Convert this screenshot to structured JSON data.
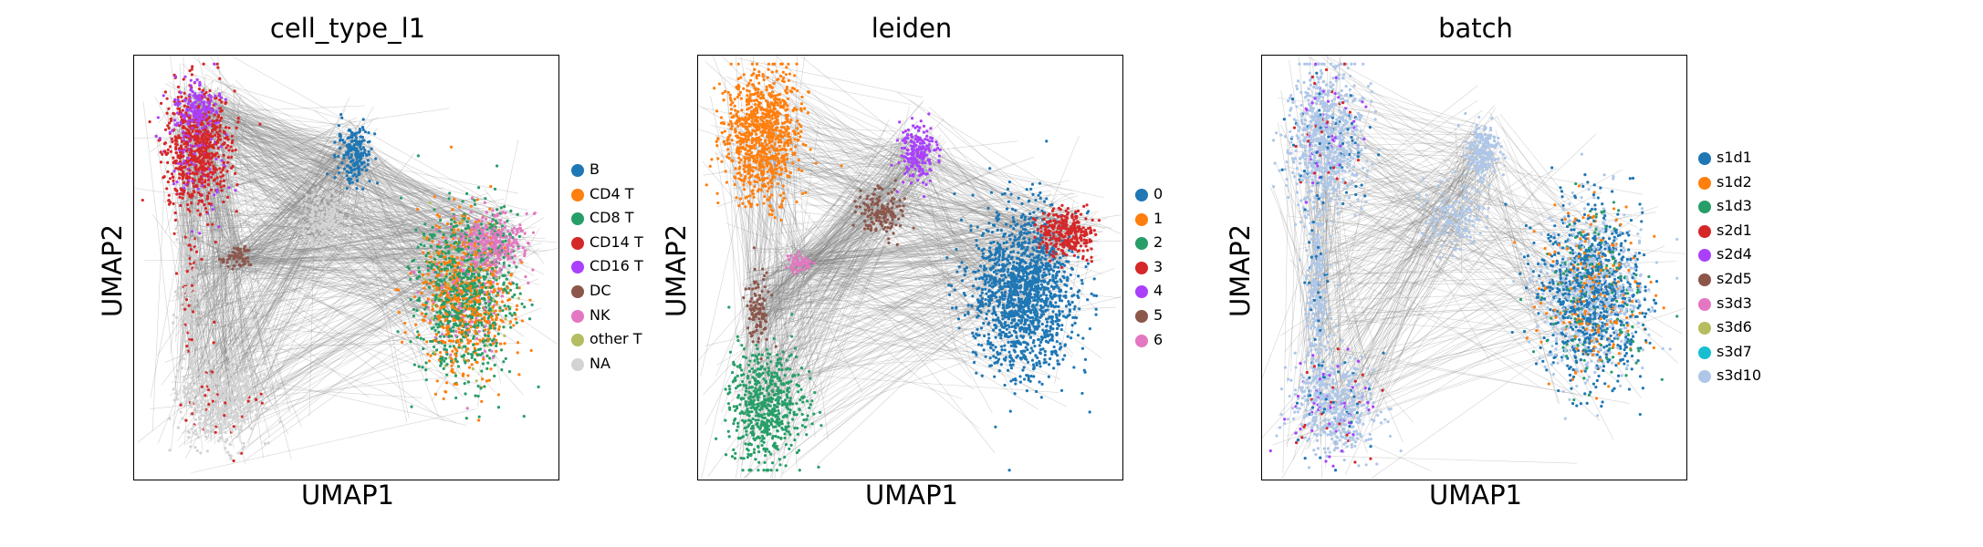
{
  "chart_data": [
    {
      "type": "scatter",
      "title": "cell_type_l1",
      "xlabel": "UMAP1",
      "ylabel": "UMAP2",
      "legend_position": "right",
      "edges_color": "#808080",
      "categories": [
        {
          "name": "B",
          "color": "#1f77b4"
        },
        {
          "name": "CD4 T",
          "color": "#ff7f0e"
        },
        {
          "name": "CD8 T",
          "color": "#279e68"
        },
        {
          "name": "CD14 T",
          "color": "#d62728"
        },
        {
          "name": "CD16 T",
          "color": "#aa40fc"
        },
        {
          "name": "DC",
          "color": "#8c564b"
        },
        {
          "name": "NK",
          "color": "#e377c2"
        },
        {
          "name": "other T",
          "color": "#b5bd61"
        },
        {
          "name": "NA",
          "color": "#d3d3d3"
        }
      ],
      "clusters": [
        {
          "x": 0.15,
          "y": 0.78,
          "rx": 0.07,
          "ry": 0.13,
          "mix": [
            [
              "#d62728",
              0.85
            ],
            [
              "#aa40fc",
              0.15
            ]
          ],
          "n": 800
        },
        {
          "x": 0.15,
          "y": 0.88,
          "rx": 0.04,
          "ry": 0.04,
          "mix": [
            [
              "#aa40fc",
              0.95
            ],
            [
              "#d62728",
              0.05
            ]
          ],
          "n": 150
        },
        {
          "x": 0.13,
          "y": 0.45,
          "rx": 0.025,
          "ry": 0.16,
          "mix": [
            [
              "#d3d3d3",
              0.85
            ],
            [
              "#d62728",
              0.15
            ]
          ],
          "n": 250
        },
        {
          "x": 0.2,
          "y": 0.18,
          "rx": 0.09,
          "ry": 0.1,
          "mix": [
            [
              "#d3d3d3",
              0.92
            ],
            [
              "#d62728",
              0.08
            ]
          ],
          "n": 450
        },
        {
          "x": 0.24,
          "y": 0.52,
          "rx": 0.03,
          "ry": 0.025,
          "mix": [
            [
              "#8c564b",
              1.0
            ]
          ],
          "n": 60
        },
        {
          "x": 0.52,
          "y": 0.77,
          "rx": 0.035,
          "ry": 0.06,
          "mix": [
            [
              "#1f77b4",
              1.0
            ]
          ],
          "n": 200
        },
        {
          "x": 0.45,
          "y": 0.62,
          "rx": 0.06,
          "ry": 0.07,
          "mix": [
            [
              "#d3d3d3",
              1.0
            ]
          ],
          "n": 180
        },
        {
          "x": 0.78,
          "y": 0.43,
          "rx": 0.1,
          "ry": 0.17,
          "mix": [
            [
              "#279e68",
              0.48
            ],
            [
              "#ff7f0e",
              0.4
            ],
            [
              "#e377c2",
              0.08
            ],
            [
              "#b5bd61",
              0.04
            ]
          ],
          "n": 1500
        },
        {
          "x": 0.85,
          "y": 0.56,
          "rx": 0.07,
          "ry": 0.06,
          "mix": [
            [
              "#e377c2",
              0.9
            ],
            [
              "#279e68",
              0.1
            ]
          ],
          "n": 300
        }
      ]
    },
    {
      "type": "scatter",
      "title": "leiden",
      "xlabel": "UMAP1",
      "ylabel": "UMAP2",
      "legend_position": "right",
      "edges_color": "#808080",
      "categories": [
        {
          "name": "0",
          "color": "#1f77b4"
        },
        {
          "name": "1",
          "color": "#ff7f0e"
        },
        {
          "name": "2",
          "color": "#279e68"
        },
        {
          "name": "3",
          "color": "#d62728"
        },
        {
          "name": "4",
          "color": "#aa40fc"
        },
        {
          "name": "5",
          "color": "#8c564b"
        },
        {
          "name": "6",
          "color": "#e377c2"
        }
      ],
      "clusters": [
        {
          "x": 0.15,
          "y": 0.81,
          "rx": 0.08,
          "ry": 0.14,
          "mix": [
            [
              "#ff7f0e",
              1.0
            ]
          ],
          "n": 900
        },
        {
          "x": 0.16,
          "y": 0.17,
          "rx": 0.08,
          "ry": 0.12,
          "mix": [
            [
              "#279e68",
              1.0
            ]
          ],
          "n": 600
        },
        {
          "x": 0.14,
          "y": 0.4,
          "rx": 0.025,
          "ry": 0.07,
          "mix": [
            [
              "#8c564b",
              1.0
            ]
          ],
          "n": 100
        },
        {
          "x": 0.24,
          "y": 0.51,
          "rx": 0.03,
          "ry": 0.02,
          "mix": [
            [
              "#e377c2",
              1.0
            ]
          ],
          "n": 60
        },
        {
          "x": 0.52,
          "y": 0.77,
          "rx": 0.04,
          "ry": 0.06,
          "mix": [
            [
              "#aa40fc",
              1.0
            ]
          ],
          "n": 200
        },
        {
          "x": 0.43,
          "y": 0.63,
          "rx": 0.05,
          "ry": 0.05,
          "mix": [
            [
              "#8c564b",
              1.0
            ]
          ],
          "n": 150
        },
        {
          "x": 0.77,
          "y": 0.44,
          "rx": 0.11,
          "ry": 0.17,
          "mix": [
            [
              "#1f77b4",
              1.0
            ]
          ],
          "n": 1500
        },
        {
          "x": 0.87,
          "y": 0.58,
          "rx": 0.06,
          "ry": 0.05,
          "mix": [
            [
              "#d62728",
              1.0
            ]
          ],
          "n": 300
        }
      ]
    },
    {
      "type": "scatter",
      "title": "batch",
      "xlabel": "UMAP1",
      "ylabel": "UMAP2",
      "legend_position": "right",
      "edges_color": "#808080",
      "categories": [
        {
          "name": "s1d1",
          "color": "#1f77b4"
        },
        {
          "name": "s1d2",
          "color": "#ff7f0e"
        },
        {
          "name": "s1d3",
          "color": "#279e68"
        },
        {
          "name": "s2d1",
          "color": "#d62728"
        },
        {
          "name": "s2d4",
          "color": "#aa40fc"
        },
        {
          "name": "s2d5",
          "color": "#8c564b"
        },
        {
          "name": "s3d3",
          "color": "#e377c2"
        },
        {
          "name": "s3d6",
          "color": "#b5bd61"
        },
        {
          "name": "s3d7",
          "color": "#17becf"
        },
        {
          "name": "s3d10",
          "color": "#aec7e8"
        }
      ],
      "clusters": [
        {
          "x": 0.15,
          "y": 0.8,
          "rx": 0.08,
          "ry": 0.15,
          "mix": [
            [
              "#aec7e8",
              0.85
            ],
            [
              "#1f77b4",
              0.08
            ],
            [
              "#aa40fc",
              0.04
            ],
            [
              "#d62728",
              0.03
            ]
          ],
          "n": 900
        },
        {
          "x": 0.13,
          "y": 0.45,
          "rx": 0.025,
          "ry": 0.16,
          "mix": [
            [
              "#aec7e8",
              0.9
            ],
            [
              "#1f77b4",
              0.1
            ]
          ],
          "n": 250
        },
        {
          "x": 0.17,
          "y": 0.17,
          "rx": 0.09,
          "ry": 0.11,
          "mix": [
            [
              "#aec7e8",
              0.82
            ],
            [
              "#aa40fc",
              0.08
            ],
            [
              "#1f77b4",
              0.06
            ],
            [
              "#d62728",
              0.04
            ]
          ],
          "n": 600
        },
        {
          "x": 0.52,
          "y": 0.77,
          "rx": 0.035,
          "ry": 0.06,
          "mix": [
            [
              "#aec7e8",
              1.0
            ]
          ],
          "n": 200
        },
        {
          "x": 0.45,
          "y": 0.62,
          "rx": 0.06,
          "ry": 0.07,
          "mix": [
            [
              "#aec7e8",
              1.0
            ]
          ],
          "n": 150
        },
        {
          "x": 0.78,
          "y": 0.44,
          "rx": 0.11,
          "ry": 0.18,
          "mix": [
            [
              "#1f77b4",
              0.45
            ],
            [
              "#aec7e8",
              0.35
            ],
            [
              "#ff7f0e",
              0.12
            ],
            [
              "#279e68",
              0.08
            ]
          ],
          "n": 1800
        }
      ]
    }
  ]
}
